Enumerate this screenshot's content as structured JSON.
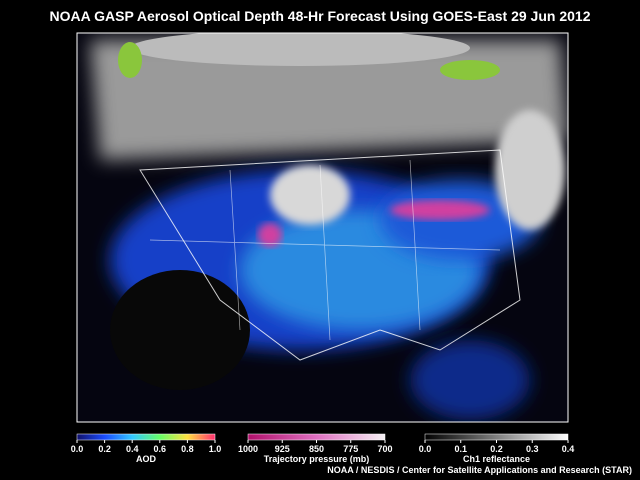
{
  "header": {
    "title": "NOAA GASP Aerosol Optical Depth 48-Hr Forecast Using GOES-East  29 Jun 2012"
  },
  "colorbars": [
    {
      "title": "AOD",
      "ticks": [
        {
          "value": 0,
          "label": "0.0"
        },
        {
          "value": 0.2,
          "label": "0.2"
        },
        {
          "value": 0.4,
          "label": "0.4"
        },
        {
          "value": 0.6,
          "label": "0.6"
        },
        {
          "value": 0.8,
          "label": "0.8"
        },
        {
          "value": 1,
          "label": "1.0"
        }
      ]
    },
    {
      "title": "Trajectory pressure (mb)",
      "ticks": [
        1000,
        925,
        850,
        775,
        700
      ]
    },
    {
      "title": "Ch1 reflectance",
      "ticks": [
        {
          "value": 0,
          "label": "0.0"
        },
        0.1,
        0.2,
        0.3,
        0.4
      ]
    }
  ],
  "footer": {
    "credit": "NOAA / NESDIS / Center for Satellite Applications and Research (STAR)"
  }
}
